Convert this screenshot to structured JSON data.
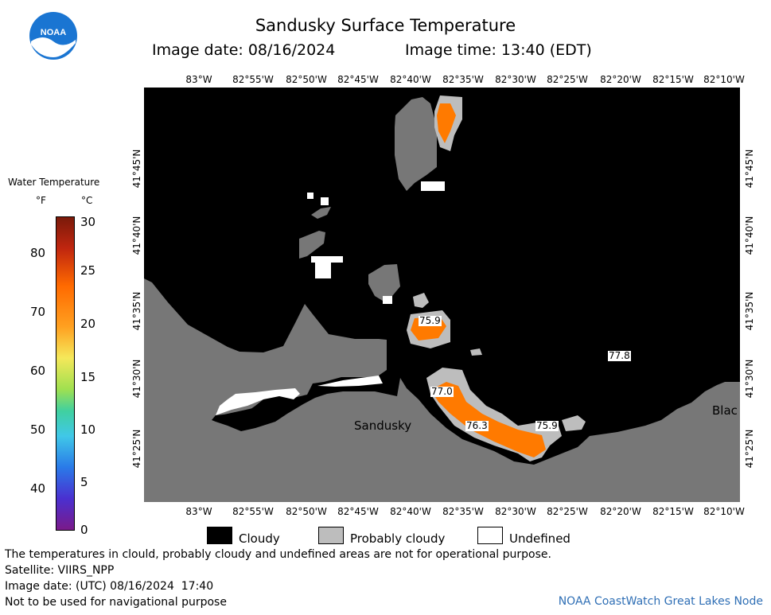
{
  "header": {
    "title": "Sandusky Surface Temperature",
    "image_date_label": "Image date: 08/16/2024",
    "image_time_label": "Image time: 13:40 (EDT)"
  },
  "logo": {
    "text": "NOAA"
  },
  "axes": {
    "lon_ticks": [
      "83°W",
      "82°55'W",
      "82°50'W",
      "82°45'W",
      "82°40'W",
      "82°35'W",
      "82°30'W",
      "82°25'W",
      "82°20'W",
      "82°15'W",
      "82°10'W"
    ],
    "lat_ticks": [
      "41°45'N",
      "41°40'N",
      "41°35'N",
      "41°30'N",
      "41°25'N"
    ]
  },
  "legend": {
    "title": "Water Temperature",
    "unit_f": "°F",
    "unit_c": "°C",
    "f_ticks": [
      "80",
      "70",
      "60",
      "50",
      "40"
    ],
    "c_ticks": [
      "30",
      "25",
      "20",
      "15",
      "10",
      "5",
      "0"
    ]
  },
  "map_labels": {
    "city": "Sandusky",
    "edge_city": "Blac",
    "temps": [
      "75.9",
      "77.0",
      "76.3",
      "75.9",
      "77.8"
    ]
  },
  "key": {
    "cloudy": "Cloudy",
    "probably_cloudy": "Probably cloudy",
    "undefined": "Undefined"
  },
  "footer": {
    "disclaimer": "The temperatures in clould, probably cloudy and undefined areas are not for operational purpose.",
    "satellite": "Satellite: VIIRS_NPP",
    "utc_date": "Image date: (UTC) 08/16/2024  17:40",
    "nav_warning": "Not to be used for navigational purpose",
    "credit": "NOAA CoastWatch Great Lakes Node"
  },
  "colors": {
    "land": "#777777",
    "cloudy": "#000000",
    "probably_cloudy": "#bdbdbd",
    "undefined": "#ffffff",
    "water_warm": "#ff7a00"
  }
}
